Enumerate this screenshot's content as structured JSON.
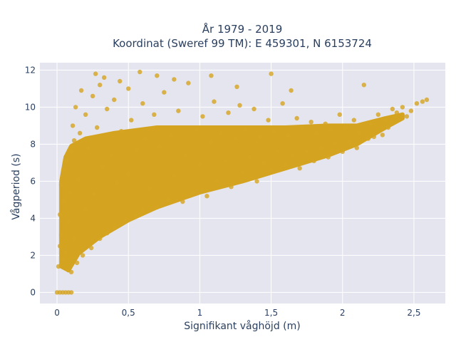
{
  "chart_data": {
    "type": "scatter",
    "title": "År 1979 - 2019",
    "subtitle": "Koordinat (Sweref 99 TM): E 459301, N 6153724",
    "xlabel": "Signifikant våghöjd (m)",
    "ylabel": "Vågperiod (s)",
    "xlim": [
      -0.12,
      2.72
    ],
    "ylim": [
      -0.6,
      12.4
    ],
    "xticks": [
      0,
      0.5,
      1,
      1.5,
      2,
      2.5
    ],
    "xtick_labels": [
      "0",
      "0,5",
      "1",
      "1,5",
      "2",
      "2,5"
    ],
    "yticks": [
      0,
      2,
      4,
      6,
      8,
      10,
      12
    ],
    "ytick_labels": [
      "0",
      "2",
      "4",
      "6",
      "8",
      "10",
      "12"
    ],
    "grid": true,
    "legend": "none",
    "marker_color": "#d4a421",
    "background": "#e5e5f0",
    "points": [
      [
        0.0,
        0.0
      ],
      [
        0.02,
        0.0
      ],
      [
        0.04,
        0.0
      ],
      [
        0.06,
        0.0
      ],
      [
        0.08,
        0.0
      ],
      [
        0.1,
        0.0
      ],
      [
        0.01,
        1.4
      ],
      [
        0.02,
        2.5
      ],
      [
        0.02,
        4.2
      ],
      [
        0.03,
        5.8
      ],
      [
        0.03,
        3.1
      ],
      [
        0.04,
        1.8
      ],
      [
        0.05,
        4.9
      ],
      [
        0.05,
        6.6
      ],
      [
        0.06,
        2.2
      ],
      [
        0.07,
        7.1
      ],
      [
        0.08,
        1.2
      ],
      [
        0.08,
        3.8
      ],
      [
        0.09,
        5.4
      ],
      [
        0.1,
        7.6
      ],
      [
        0.1,
        1.1
      ],
      [
        0.12,
        8.2
      ],
      [
        0.12,
        2.9
      ],
      [
        0.14,
        1.6
      ],
      [
        0.15,
        6.1
      ],
      [
        0.16,
        8.6
      ],
      [
        0.18,
        2.0
      ],
      [
        0.2,
        4.5
      ],
      [
        0.2,
        9.6
      ],
      [
        0.22,
        7.8
      ],
      [
        0.24,
        2.4
      ],
      [
        0.25,
        10.6
      ],
      [
        0.26,
        5.3
      ],
      [
        0.28,
        8.9
      ],
      [
        0.3,
        2.9
      ],
      [
        0.3,
        11.2
      ],
      [
        0.32,
        6.8
      ],
      [
        0.35,
        3.2
      ],
      [
        0.35,
        9.9
      ],
      [
        0.38,
        7.4
      ],
      [
        0.4,
        3.5
      ],
      [
        0.4,
        10.4
      ],
      [
        0.42,
        5.9
      ],
      [
        0.45,
        8.7
      ],
      [
        0.48,
        3.9
      ],
      [
        0.5,
        11.0
      ],
      [
        0.5,
        6.4
      ],
      [
        0.52,
        9.3
      ],
      [
        0.55,
        4.1
      ],
      [
        0.56,
        7.7
      ],
      [
        0.6,
        10.2
      ],
      [
        0.6,
        4.4
      ],
      [
        0.62,
        8.3
      ],
      [
        0.65,
        5.6
      ],
      [
        0.68,
        9.6
      ],
      [
        0.7,
        4.6
      ],
      [
        0.72,
        7.9
      ],
      [
        0.75,
        10.8
      ],
      [
        0.78,
        5.0
      ],
      [
        0.8,
        8.5
      ],
      [
        0.82,
        6.3
      ],
      [
        0.85,
        9.8
      ],
      [
        0.88,
        4.9
      ],
      [
        0.9,
        7.4
      ],
      [
        0.92,
        11.3
      ],
      [
        0.95,
        5.4
      ],
      [
        0.98,
        8.8
      ],
      [
        1.0,
        6.9
      ],
      [
        1.02,
        9.5
      ],
      [
        1.05,
        5.2
      ],
      [
        1.08,
        8.1
      ],
      [
        1.1,
        10.3
      ],
      [
        1.12,
        6.0
      ],
      [
        1.15,
        8.6
      ],
      [
        1.18,
        7.1
      ],
      [
        1.2,
        9.7
      ],
      [
        1.22,
        5.7
      ],
      [
        1.25,
        8.3
      ],
      [
        1.28,
        10.1
      ],
      [
        1.3,
        6.5
      ],
      [
        1.32,
        8.8
      ],
      [
        1.35,
        7.3
      ],
      [
        1.38,
        9.9
      ],
      [
        1.4,
        6.0
      ],
      [
        1.42,
        8.4
      ],
      [
        1.45,
        7.0
      ],
      [
        1.48,
        9.3
      ],
      [
        1.5,
        6.6
      ],
      [
        1.52,
        8.7
      ],
      [
        1.55,
        7.6
      ],
      [
        1.58,
        10.2
      ],
      [
        1.6,
        6.9
      ],
      [
        1.62,
        8.5
      ],
      [
        1.65,
        7.4
      ],
      [
        1.68,
        9.4
      ],
      [
        1.7,
        6.7
      ],
      [
        1.72,
        8.9
      ],
      [
        1.75,
        7.6
      ],
      [
        1.78,
        9.2
      ],
      [
        1.8,
        7.1
      ],
      [
        1.82,
        8.6
      ],
      [
        1.85,
        7.8
      ],
      [
        1.88,
        9.1
      ],
      [
        1.9,
        7.3
      ],
      [
        1.92,
        8.8
      ],
      [
        1.95,
        8.0
      ],
      [
        1.98,
        9.6
      ],
      [
        2.0,
        7.6
      ],
      [
        2.02,
        8.9
      ],
      [
        2.05,
        8.1
      ],
      [
        2.08,
        9.3
      ],
      [
        2.1,
        7.8
      ],
      [
        2.12,
        8.6
      ],
      [
        2.15,
        11.2
      ],
      [
        2.18,
        8.3
      ],
      [
        2.2,
        9.1
      ],
      [
        2.22,
        8.4
      ],
      [
        2.25,
        9.6
      ],
      [
        2.28,
        8.5
      ],
      [
        2.3,
        9.3
      ],
      [
        2.32,
        8.9
      ],
      [
        2.35,
        9.9
      ],
      [
        2.38,
        9.7
      ],
      [
        2.42,
        10.0
      ],
      [
        2.48,
        9.8
      ],
      [
        2.52,
        10.2
      ],
      [
        2.56,
        10.3
      ],
      [
        2.59,
        10.4
      ],
      [
        2.45,
        9.5
      ],
      [
        0.11,
        9.0
      ],
      [
        0.13,
        10.0
      ],
      [
        0.17,
        10.9
      ],
      [
        0.27,
        11.8
      ],
      [
        0.33,
        11.6
      ],
      [
        0.44,
        11.4
      ],
      [
        0.58,
        11.9
      ],
      [
        0.7,
        11.7
      ],
      [
        0.82,
        11.5
      ],
      [
        1.08,
        11.7
      ],
      [
        1.5,
        11.8
      ],
      [
        1.26,
        11.1
      ],
      [
        1.64,
        10.9
      ]
    ]
  }
}
